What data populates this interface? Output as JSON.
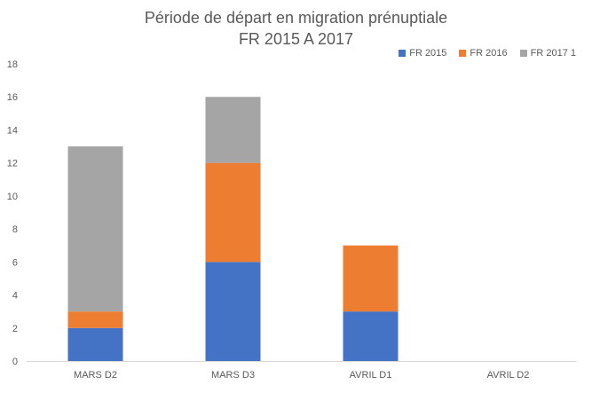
{
  "chart_data": {
    "type": "bar",
    "stacked": true,
    "title": "Période de départ en migration prénuptiale",
    "subtitle": "FR 2015 A 2017",
    "categories": [
      "MARS D2",
      "MARS D3",
      "AVRIL D1",
      "AVRIL D2"
    ],
    "series": [
      {
        "name": "FR 2015",
        "color": "#4472c4",
        "values": [
          2,
          6,
          3,
          0
        ]
      },
      {
        "name": "FR 2016",
        "color": "#ed7d31",
        "values": [
          1,
          6,
          4,
          0
        ]
      },
      {
        "name": "FR 2017 1",
        "color": "#a5a5a5",
        "values": [
          10,
          4,
          0,
          0
        ]
      }
    ],
    "ylim": [
      0,
      18
    ],
    "yticks": [
      0,
      2,
      4,
      6,
      8,
      10,
      12,
      14,
      16,
      18
    ],
    "grid": false,
    "legend_position": "top-right"
  }
}
